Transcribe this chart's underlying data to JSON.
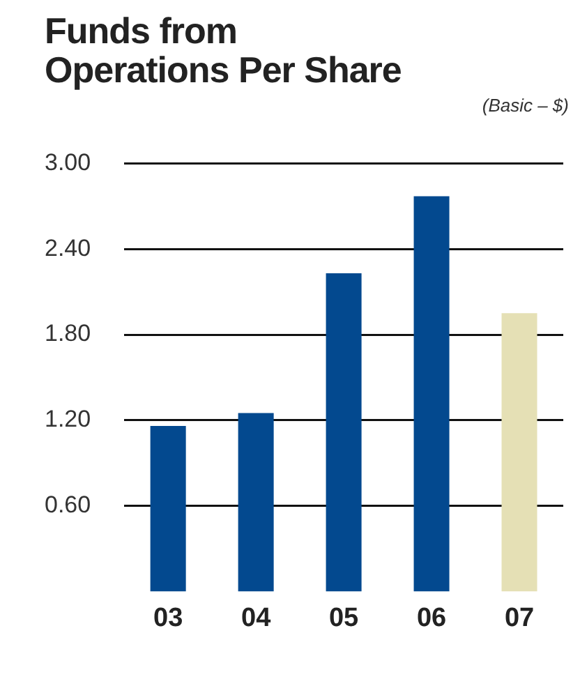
{
  "chart_data": {
    "type": "bar",
    "title": "Funds from Operations Per Share",
    "subtitle": "(Basic – $)",
    "categories": [
      "03",
      "04",
      "05",
      "06",
      "07"
    ],
    "values": [
      1.16,
      1.25,
      2.23,
      2.77,
      1.95
    ],
    "colors": [
      "#03498f",
      "#03498f",
      "#03498f",
      "#03498f",
      "#e5e0b5"
    ],
    "ylim": [
      0,
      3
    ],
    "yticks": [
      {
        "value": 0.6,
        "label": "0.60"
      },
      {
        "value": 1.2,
        "label": "1.20"
      },
      {
        "value": 1.8,
        "label": "1.80"
      },
      {
        "value": 2.4,
        "label": "2.40"
      },
      {
        "value": 3,
        "label": "3.00"
      }
    ],
    "grid": "y",
    "legend": false
  }
}
